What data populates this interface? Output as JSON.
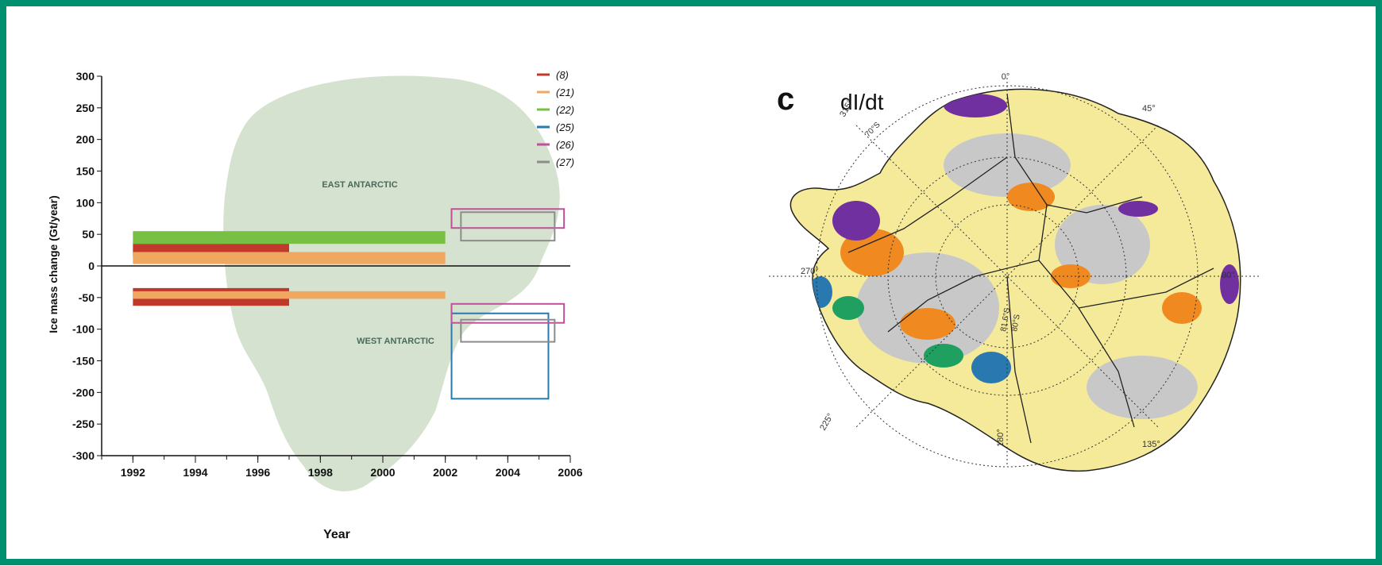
{
  "chart_data": {
    "type": "bar",
    "xlabel": "Year",
    "ylabel": "Ice mass change (Gt/year)",
    "xlim": [
      1991,
      2006
    ],
    "ylim": [
      -300,
      300
    ],
    "xticks": [
      1992,
      1994,
      1996,
      1998,
      2000,
      2002,
      2004,
      2006
    ],
    "yticks": [
      300,
      250,
      200,
      150,
      100,
      50,
      0,
      -50,
      -100,
      -150,
      -200,
      -250,
      -300
    ],
    "grid": false,
    "legend_position": "top-right",
    "background_labels": [
      "EAST ANTARCTIC",
      "WEST ANTARCTIC"
    ],
    "series": [
      {
        "name": "(8)",
        "color": "#c0392b",
        "fill": true,
        "ranges": [
          {
            "x": [
              1992,
              1997
            ],
            "y": [
              15,
              35
            ]
          },
          {
            "x": [
              1992,
              1997
            ],
            "y": [
              -63,
              -35
            ]
          }
        ]
      },
      {
        "name": "(21)",
        "color": "#f0a860",
        "fill": true,
        "ranges": [
          {
            "x": [
              1992,
              2002
            ],
            "y": [
              3,
              22
            ]
          },
          {
            "x": [
              1992,
              2002
            ],
            "y": [
              -52,
              -40
            ]
          }
        ]
      },
      {
        "name": "(22)",
        "color": "#78c043",
        "fill": true,
        "ranges": [
          {
            "x": [
              1992,
              2002
            ],
            "y": [
              35,
              55
            ]
          }
        ]
      },
      {
        "name": "(25)",
        "color": "#2a78b0",
        "fill": false,
        "ranges": [
          {
            "x": [
              2002.2,
              2005.3
            ],
            "y": [
              -210,
              -75
            ]
          }
        ]
      },
      {
        "name": "(26)",
        "color": "#c0509a",
        "fill": false,
        "ranges": [
          {
            "x": [
              2002.2,
              2005.8
            ],
            "y": [
              60,
              90
            ]
          },
          {
            "x": [
              2002.2,
              2005.8
            ],
            "y": [
              -90,
              -60
            ]
          }
        ]
      },
      {
        "name": "(27)",
        "color": "#8c8c8c",
        "fill": false,
        "ranges": [
          {
            "x": [
              2002.5,
              2005.5
            ],
            "y": [
              40,
              85
            ]
          },
          {
            "x": [
              2002.5,
              2005.5
            ],
            "y": [
              -120,
              -85
            ]
          }
        ]
      }
    ]
  },
  "map": {
    "panel_label": "c",
    "title": "dI/dt",
    "lon_labels": [
      "0°",
      "45°",
      "90°",
      "135°",
      "180°",
      "225°",
      "270°",
      "315°"
    ],
    "lat_labels": [
      "70°S",
      "80°S",
      "81.6°S"
    ],
    "colors": {
      "increase": "#7030a0",
      "strong_increase": "#f08a20",
      "neutral": "#f5ea9a",
      "stable": "#c8c8c8",
      "decrease": "#2a78b0",
      "strong_decrease": "#20a060"
    }
  }
}
